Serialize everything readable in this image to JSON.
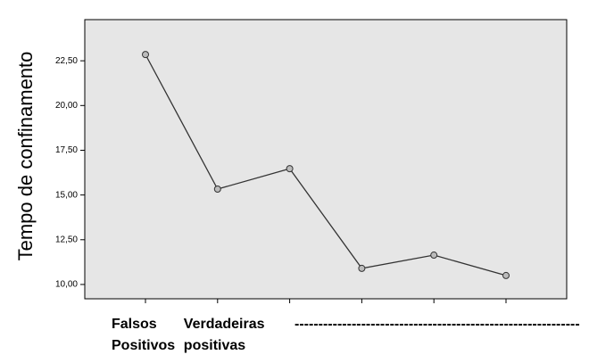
{
  "chart_data": {
    "type": "line",
    "y_label": "Tempo de confinamento",
    "categories": [
      "Falsos Positivos",
      "Verdadeiras positivas",
      null,
      null,
      null,
      null
    ],
    "annotation": "------------------------------------------------------------",
    "values": [
      22.85,
      15.33,
      16.47,
      10.9,
      11.64,
      10.5
    ],
    "color": "#333333",
    "ylim": [
      9.2,
      24.8
    ],
    "yticks": [
      {
        "value": 10,
        "label": "10,00"
      },
      {
        "value": 12.5,
        "label": "12,50"
      },
      {
        "value": 15,
        "label": "15,00"
      },
      {
        "value": 17.5,
        "label": "17,50"
      },
      {
        "value": 20,
        "label": "20,00"
      },
      {
        "value": 22.5,
        "label": "22,50"
      }
    ],
    "grid": false
  }
}
